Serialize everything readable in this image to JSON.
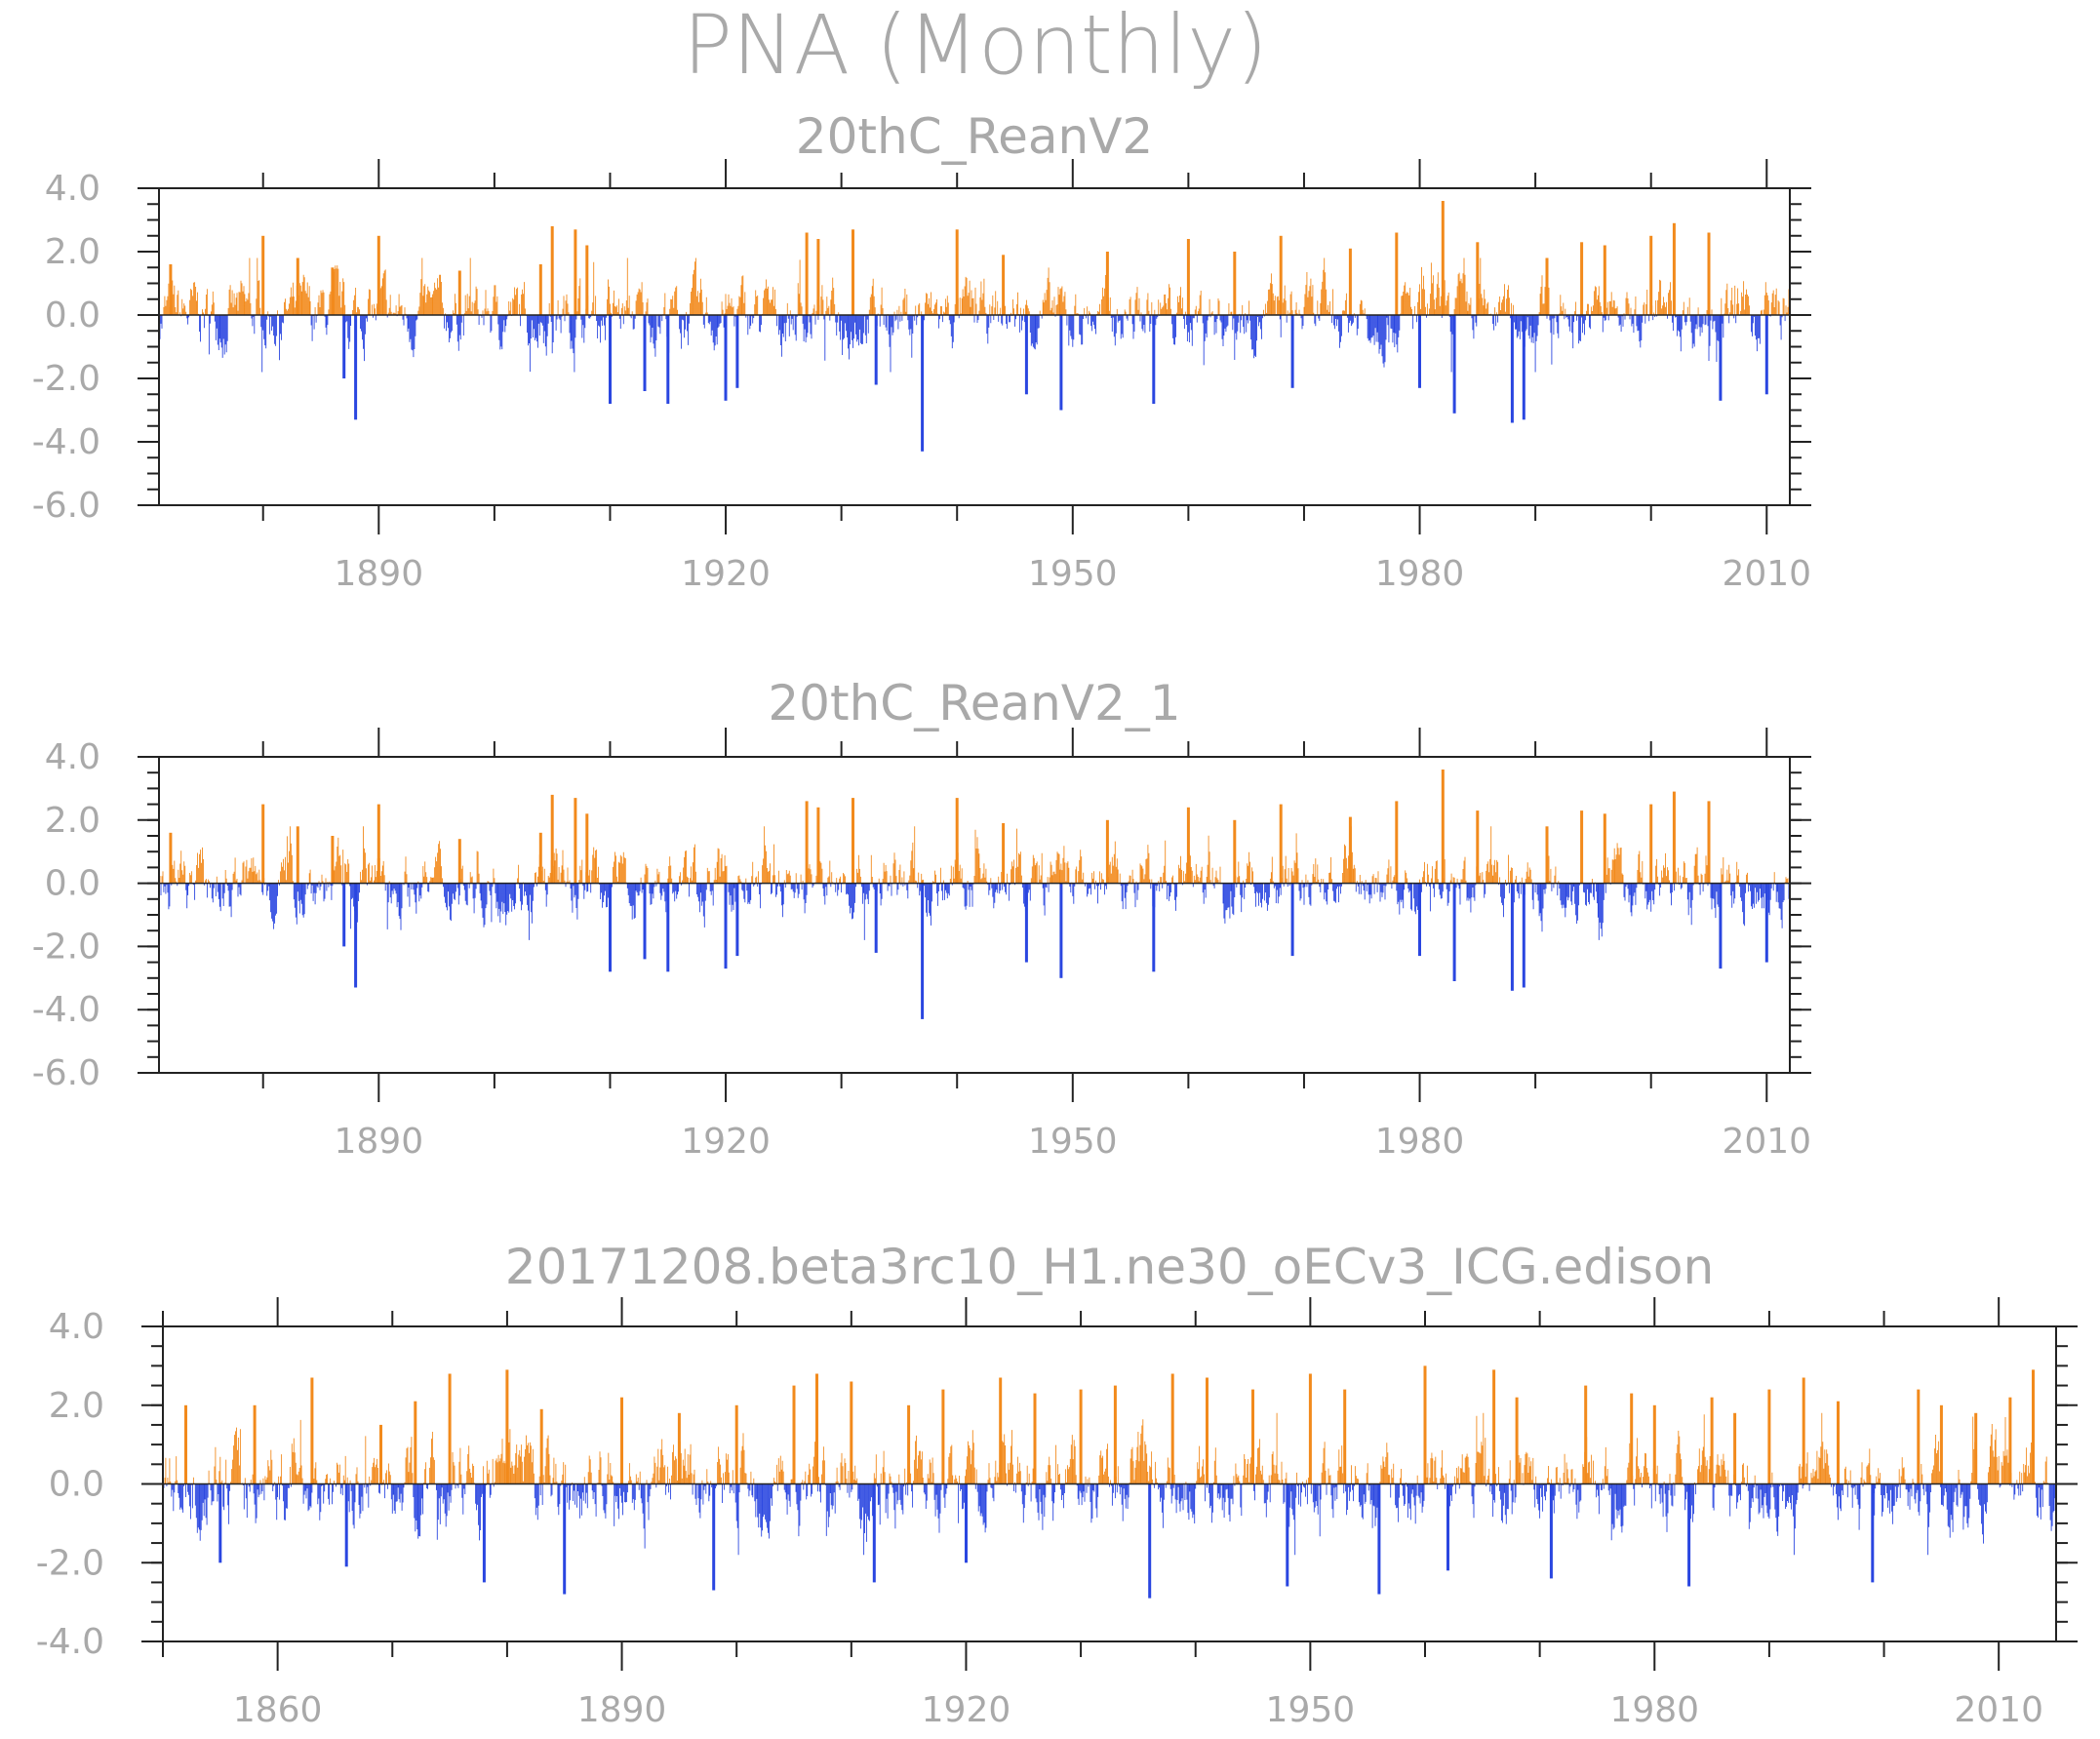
{
  "title": "PNA (Monthly)",
  "colors": {
    "positive": "#f28a1c",
    "negative": "#2a46e0",
    "text": "#a9a9a9",
    "axis": "#222222"
  },
  "chart_data": [
    {
      "type": "bar",
      "title": "20thC_ReanV2",
      "x_range": [
        1871,
        2012
      ],
      "ylim": [
        -6,
        4
      ],
      "yticks": [
        "4.0",
        "2.0",
        "0.0",
        "-2.0",
        "-4.0",
        "-6.0"
      ],
      "xticks": [
        "1890",
        "1920",
        "1950",
        "1980",
        "2010"
      ],
      "series": [
        {
          "x": [
            1872,
            1880,
            1883,
            1886,
            1887,
            1888,
            1890,
            1897,
            1904,
            1905,
            1907,
            1908,
            1910,
            1913,
            1915,
            1920,
            1921,
            1927,
            1928,
            1931,
            1933,
            1937,
            1940,
            1944,
            1946,
            1949,
            1953,
            1957,
            1960,
            1964,
            1968,
            1969,
            1974,
            1978,
            1980,
            1982,
            1983,
            1985,
            1988,
            1989,
            1991,
            1994,
            1996,
            2000,
            2002,
            2005,
            2006,
            2010
          ],
          "values": [
            1.6,
            2.5,
            1.8,
            1.5,
            -2.0,
            -3.3,
            2.5,
            1.4,
            1.6,
            2.8,
            2.7,
            2.2,
            -2.8,
            -2.4,
            -2.8,
            -2.7,
            -2.3,
            2.6,
            2.4,
            2.7,
            -2.2,
            -4.3,
            2.7,
            1.9,
            -2.5,
            -3.0,
            2.0,
            -2.8,
            2.4,
            2.0,
            2.5,
            -2.3,
            2.1,
            2.6,
            -2.3,
            3.6,
            -3.1,
            2.3,
            -3.4,
            -3.3,
            1.8,
            2.3,
            2.2,
            2.5,
            2.9,
            2.6,
            -2.7,
            -2.5
          ]
        }
      ]
    },
    {
      "type": "bar",
      "title": "20thC_ReanV2_1",
      "x_range": [
        1871,
        2012
      ],
      "ylim": [
        -6,
        4
      ],
      "yticks": [
        "4.0",
        "2.0",
        "0.0",
        "-2.0",
        "-4.0",
        "-6.0"
      ],
      "xticks": [
        "1890",
        "1920",
        "1950",
        "1980",
        "2010"
      ],
      "series": [
        {
          "x": [
            1872,
            1880,
            1883,
            1886,
            1887,
            1888,
            1890,
            1897,
            1904,
            1905,
            1907,
            1908,
            1910,
            1913,
            1915,
            1920,
            1921,
            1927,
            1928,
            1931,
            1933,
            1937,
            1940,
            1944,
            1946,
            1949,
            1953,
            1957,
            1960,
            1964,
            1968,
            1969,
            1974,
            1978,
            1980,
            1982,
            1983,
            1985,
            1988,
            1989,
            1991,
            1994,
            1996,
            2000,
            2002,
            2005,
            2006,
            2010
          ],
          "values": [
            1.6,
            2.5,
            1.8,
            1.5,
            -2.0,
            -3.3,
            2.5,
            1.4,
            1.6,
            2.8,
            2.7,
            2.2,
            -2.8,
            -2.4,
            -2.8,
            -2.7,
            -2.3,
            2.6,
            2.4,
            2.7,
            -2.2,
            -4.3,
            2.7,
            1.9,
            -2.5,
            -3.0,
            2.0,
            -2.8,
            2.4,
            2.0,
            2.5,
            -2.3,
            2.1,
            2.6,
            -2.3,
            3.6,
            -3.1,
            2.3,
            -3.4,
            -3.3,
            1.8,
            2.3,
            2.2,
            2.5,
            2.9,
            2.6,
            -2.7,
            -2.5
          ]
        }
      ]
    },
    {
      "type": "bar",
      "title": "20171208.beta3rc10_H1.ne30_oECv3_ICG.edison",
      "x_range": [
        1850,
        2015
      ],
      "ylim": [
        -4,
        4
      ],
      "yticks": [
        "4.0",
        "2.0",
        "0.0",
        "-2.0",
        "-4.0"
      ],
      "xticks": [
        "1860",
        "1890",
        "1920",
        "1950",
        "1980",
        "2010"
      ],
      "series": [
        {
          "x": [
            1852,
            1855,
            1858,
            1863,
            1866,
            1869,
            1872,
            1875,
            1878,
            1880,
            1883,
            1885,
            1890,
            1895,
            1898,
            1900,
            1905,
            1907,
            1910,
            1912,
            1915,
            1918,
            1920,
            1923,
            1926,
            1930,
            1933,
            1936,
            1938,
            1941,
            1945,
            1948,
            1950,
            1953,
            1956,
            1960,
            1962,
            1966,
            1968,
            1971,
            1974,
            1978,
            1980,
            1983,
            1985,
            1987,
            1990,
            1993,
            1996,
            1999,
            2003,
            2005,
            2008,
            2011,
            2013
          ],
          "values": [
            2.0,
            -2.0,
            2.0,
            2.7,
            -2.1,
            1.5,
            2.1,
            2.8,
            -2.5,
            2.9,
            1.9,
            -2.8,
            2.2,
            1.8,
            -2.7,
            2.0,
            2.5,
            2.8,
            2.6,
            -2.5,
            2.0,
            2.4,
            -2.0,
            2.7,
            2.3,
            2.4,
            2.5,
            -2.9,
            2.8,
            2.7,
            2.4,
            -2.6,
            2.8,
            2.4,
            -2.8,
            3.0,
            -2.2,
            2.9,
            2.2,
            -2.4,
            2.5,
            2.3,
            2.0,
            -2.6,
            2.2,
            1.8,
            2.4,
            2.7,
            2.1,
            -2.5,
            2.4,
            2.0,
            1.8,
            2.2,
            2.9
          ]
        }
      ]
    }
  ]
}
